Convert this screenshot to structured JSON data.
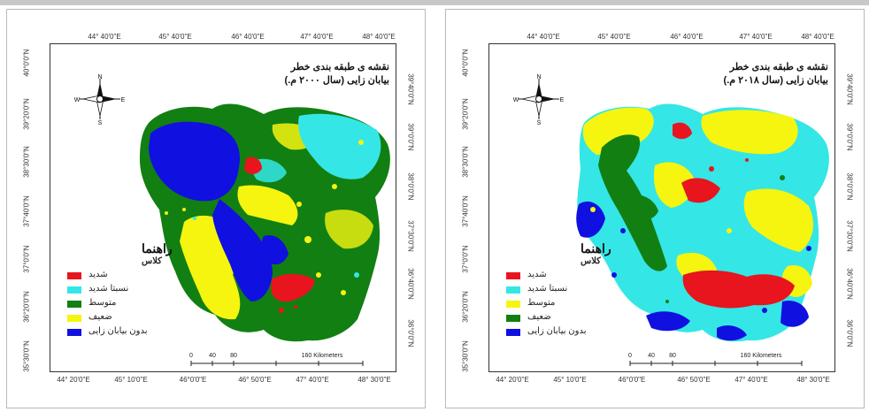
{
  "colors": {
    "severe": "#e8141e",
    "rel_severe": "#35e6e6",
    "medium": "#127f12",
    "weak": "#f5f50f",
    "none": "#1010e0"
  },
  "axes": {
    "top": [
      "44° 40'0\"E",
      "45° 40'0\"E",
      "46° 40'0\"E",
      "47° 40'0\"E",
      "48° 40'0\"E"
    ],
    "bottom": [
      "44° 20'0\"E",
      "45° 10'0\"E",
      "46°0'0\"E",
      "46° 50'0\"E",
      "47° 40'0\"E",
      "48° 30'0\"E"
    ],
    "left": [
      "40°0'0\"N",
      "39°20'0\"N",
      "38°30'0\"N",
      "37°40'0\"N",
      "37°0'0\"N",
      "36°20'0\"N",
      "35°30'0\"N"
    ],
    "right": [
      "39°40'0\"N",
      "39°0'0\"N",
      "38°0'0\"N",
      "37°30'0\"N",
      "36°40'0\"N",
      "36°0'0\"N"
    ]
  },
  "compass": {
    "n": "N",
    "s": "S",
    "e": "E",
    "w": "W"
  },
  "legend": {
    "title": "راهنما",
    "subtitle": "کلاس",
    "items": [
      {
        "key": "severe",
        "label": "شدید"
      },
      {
        "key": "rel_severe",
        "label": "نسبتا شدید"
      },
      {
        "key": "medium",
        "label": "متوسط"
      },
      {
        "key": "weak",
        "label": "ضعیف"
      },
      {
        "key": "none",
        "label": "بدون بیابان زایی"
      }
    ]
  },
  "scale": {
    "labels": [
      "0",
      "40",
      "80",
      "160 Kilometers"
    ]
  },
  "maps": [
    {
      "title_line1": "نقشه ی طبقه بندی خطر",
      "title_line2": "بیابان زایی (سال ۲۰۰۰ م.)"
    },
    {
      "title_line1": "نقشه ی طبقه بندی خطر",
      "title_line2": "بیابان زایی (سال ۲۰۱۸ م.)"
    }
  ]
}
